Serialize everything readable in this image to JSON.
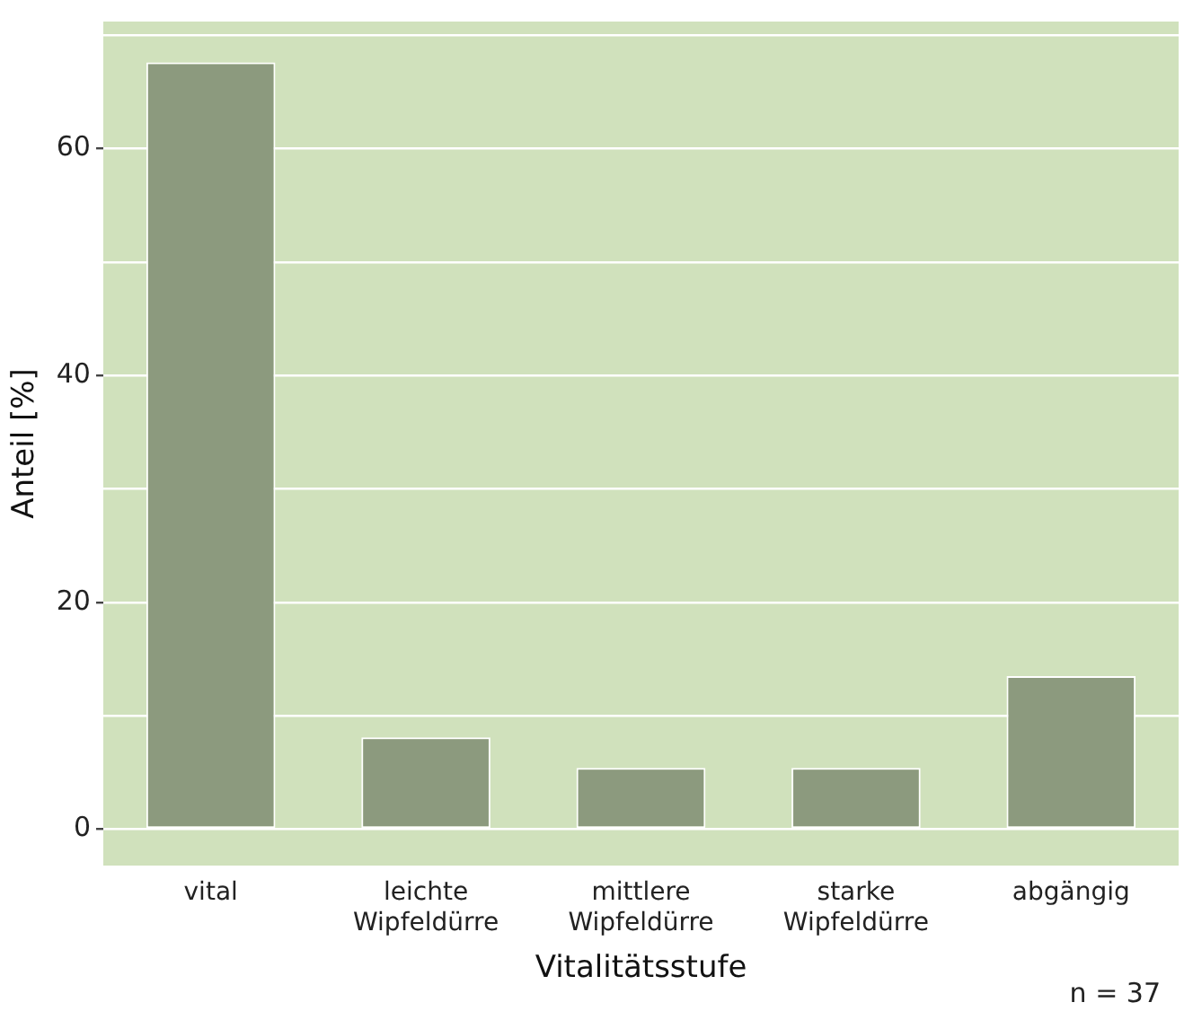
{
  "chart_data": {
    "type": "bar",
    "xlabel": "Vitalitätsstufe",
    "ylabel": "Anteil [%]",
    "categories": [
      "vital",
      "leichte\nWipfeldürre",
      "mittlere\nWipfeldürre",
      "starke\nWipfeldürre",
      "abgängig"
    ],
    "values": [
      67.6,
      8.1,
      5.4,
      5.4,
      13.5
    ],
    "color": "#8c9a7e",
    "ylim": [
      -3.2,
      71.2
    ],
    "yticks": [
      0,
      {
        "value": 10,
        "label": null
      },
      20,
      {
        "value": 30,
        "label": null
      },
      40,
      {
        "value": 50,
        "label": null
      },
      60,
      {
        "value": 70,
        "label": null
      }
    ],
    "grid": "y",
    "legend": false,
    "annotations": [
      "n = 37"
    ]
  }
}
